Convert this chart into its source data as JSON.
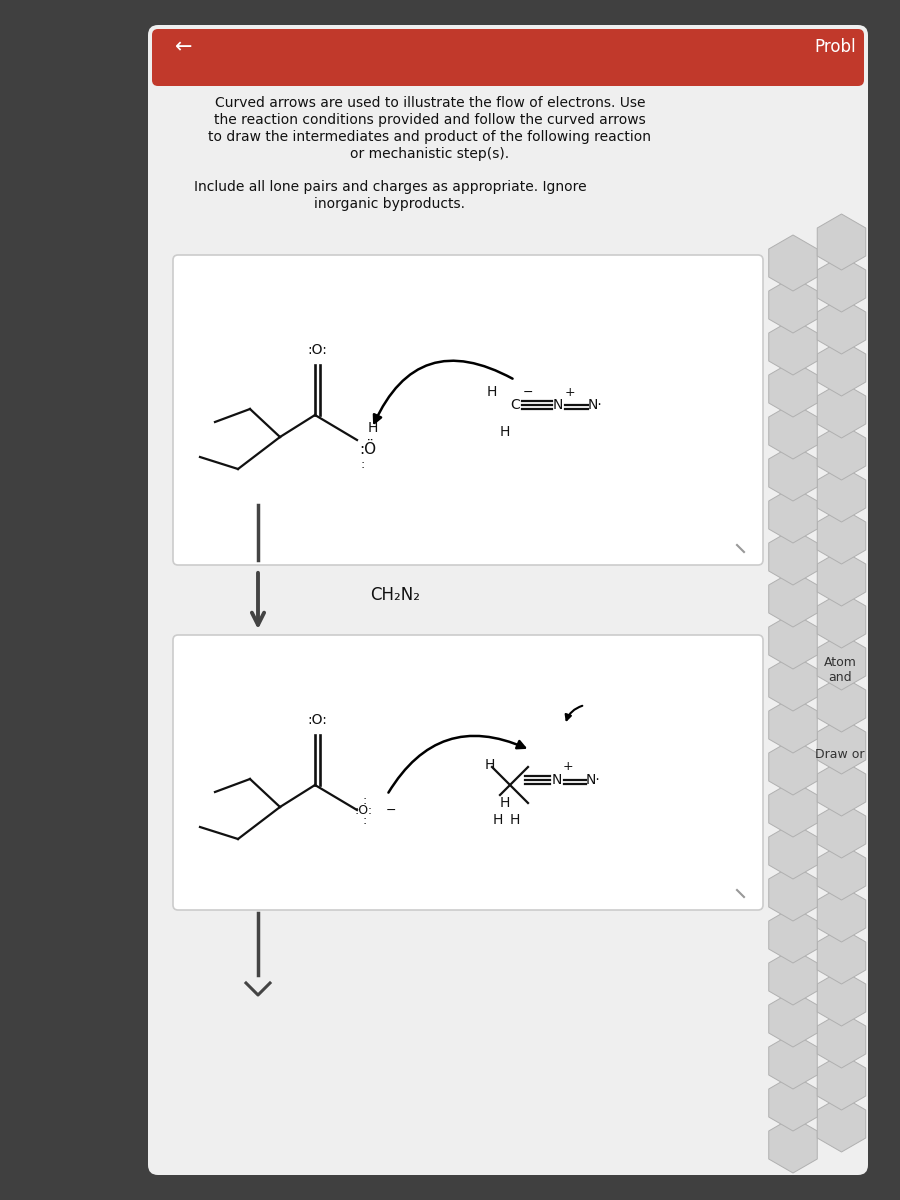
{
  "bg_outer": "#404040",
  "bg_card": "#efefef",
  "red_header": "#c1392b",
  "white": "#ffffff",
  "mol_color": "#111111",
  "title_text1": "Curved arrows are used to illustrate the flow of electrons. Use",
  "title_text2": "the reaction conditions provided and follow the curved arrows",
  "title_text3": "to draw the intermediates and product of the following reaction",
  "title_text4": "or mechanistic step(s).",
  "subtitle_text1": "Include all lone pairs and charges as appropriate. Ignore",
  "subtitle_text2": "inorganic byproducts.",
  "reagent": "CH₂N₂",
  "probl_text": "Probl",
  "atom_text": "Atom\nand",
  "draw_text": "Draw or",
  "hex_fill": "#d0d0d0",
  "hex_edge": "#b0b0b0",
  "box_edge": "#cccccc",
  "arrow_color": "#444444",
  "magnifier_color": "#999999"
}
